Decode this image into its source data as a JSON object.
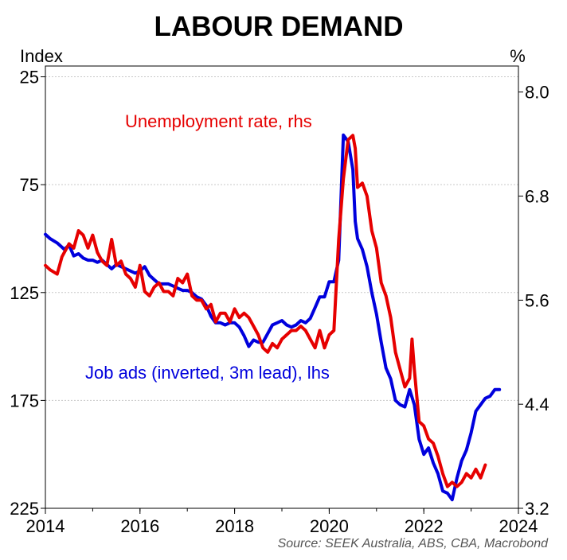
{
  "chart_data": {
    "type": "line",
    "title": "LABOUR DEMAND",
    "left_axis_label": "Index",
    "right_axis_label": "%",
    "x_ticks": [
      "2014",
      "2016",
      "2018",
      "2020",
      "2022",
      "2024"
    ],
    "xlim": [
      2014,
      2024
    ],
    "left_ticks": [
      "25",
      "75",
      "125",
      "175",
      "225"
    ],
    "left_ylim_inverted": [
      20,
      225
    ],
    "right_ticks": [
      "8.0",
      "6.8",
      "5.6",
      "4.4",
      "3.2"
    ],
    "right_ylim": [
      3.2,
      8.3
    ],
    "grid": true,
    "annotations": {
      "unemployment": "Unemployment rate, rhs",
      "job_ads": "Job ads (inverted, 3m lead), lhs"
    },
    "source": "Source: SEEK Australia, ABS, CBA, Macrobond",
    "series": [
      {
        "name": "Unemployment rate, rhs",
        "axis": "right",
        "color": "#e60000",
        "x": [
          2014.0,
          2014.1,
          2014.25,
          2014.35,
          2014.5,
          2014.6,
          2014.7,
          2014.8,
          2014.9,
          2015.0,
          2015.1,
          2015.2,
          2015.3,
          2015.4,
          2015.5,
          2015.6,
          2015.7,
          2015.8,
          2015.9,
          2016.0,
          2016.1,
          2016.2,
          2016.3,
          2016.4,
          2016.5,
          2016.6,
          2016.7,
          2016.8,
          2016.9,
          2017.0,
          2017.1,
          2017.2,
          2017.3,
          2017.4,
          2017.5,
          2017.6,
          2017.7,
          2017.8,
          2017.9,
          2018.0,
          2018.1,
          2018.2,
          2018.3,
          2018.4,
          2018.5,
          2018.6,
          2018.7,
          2018.8,
          2018.9,
          2019.0,
          2019.1,
          2019.2,
          2019.3,
          2019.4,
          2019.5,
          2019.6,
          2019.7,
          2019.8,
          2019.9,
          2020.0,
          2020.1,
          2020.2,
          2020.3,
          2020.4,
          2020.5,
          2020.55,
          2020.6,
          2020.7,
          2020.8,
          2020.9,
          2021.0,
          2021.1,
          2021.2,
          2021.3,
          2021.4,
          2021.5,
          2021.6,
          2021.7,
          2021.75,
          2021.8,
          2021.9,
          2022.0,
          2022.1,
          2022.2,
          2022.3,
          2022.4,
          2022.5,
          2022.6,
          2022.7,
          2022.8,
          2022.9,
          2023.0,
          2023.1,
          2023.2,
          2023.3
        ],
        "values": [
          6.0,
          5.95,
          5.9,
          6.1,
          6.25,
          6.2,
          6.4,
          6.35,
          6.2,
          6.35,
          6.15,
          6.05,
          6.0,
          6.3,
          6.0,
          6.05,
          5.9,
          5.85,
          5.75,
          6.0,
          5.7,
          5.65,
          5.75,
          5.8,
          5.7,
          5.7,
          5.65,
          5.85,
          5.8,
          5.9,
          5.65,
          5.6,
          5.6,
          5.5,
          5.55,
          5.35,
          5.45,
          5.45,
          5.35,
          5.5,
          5.4,
          5.45,
          5.4,
          5.3,
          5.2,
          5.05,
          5.0,
          5.1,
          5.05,
          5.15,
          5.2,
          5.25,
          5.25,
          5.3,
          5.25,
          5.15,
          5.05,
          5.25,
          5.05,
          5.2,
          5.25,
          6.3,
          7.0,
          7.45,
          7.5,
          7.35,
          6.9,
          6.95,
          6.8,
          6.4,
          6.2,
          5.8,
          5.65,
          5.4,
          5.0,
          4.8,
          4.6,
          4.7,
          5.15,
          4.8,
          4.2,
          4.15,
          4.0,
          3.95,
          3.8,
          3.6,
          3.45,
          3.5,
          3.45,
          3.5,
          3.6,
          3.55,
          3.65,
          3.55,
          3.7
        ]
      },
      {
        "name": "Job ads (inverted, 3m lead), lhs",
        "axis": "left",
        "color": "#0000dd",
        "x": [
          2014.0,
          2014.1,
          2014.25,
          2014.4,
          2014.5,
          2014.6,
          2014.7,
          2014.8,
          2014.9,
          2015.0,
          2015.1,
          2015.2,
          2015.3,
          2015.4,
          2015.5,
          2015.6,
          2015.7,
          2015.8,
          2015.9,
          2016.0,
          2016.1,
          2016.2,
          2016.3,
          2016.4,
          2016.5,
          2016.6,
          2016.7,
          2016.8,
          2016.9,
          2017.0,
          2017.1,
          2017.2,
          2017.3,
          2017.4,
          2017.5,
          2017.6,
          2017.7,
          2017.8,
          2017.9,
          2018.0,
          2018.1,
          2018.2,
          2018.3,
          2018.4,
          2018.5,
          2018.6,
          2018.7,
          2018.8,
          2018.9,
          2019.0,
          2019.1,
          2019.2,
          2019.3,
          2019.4,
          2019.5,
          2019.6,
          2019.7,
          2019.8,
          2019.9,
          2020.0,
          2020.1,
          2020.2,
          2020.3,
          2020.4,
          2020.5,
          2020.55,
          2020.6,
          2020.7,
          2020.8,
          2020.9,
          2021.0,
          2021.1,
          2021.2,
          2021.3,
          2021.4,
          2021.5,
          2021.6,
          2021.7,
          2021.8,
          2021.9,
          2022.0,
          2022.1,
          2022.2,
          2022.3,
          2022.4,
          2022.5,
          2022.6,
          2022.7,
          2022.8,
          2022.9,
          2023.0,
          2023.1,
          2023.2,
          2023.3,
          2023.4,
          2023.5,
          2023.6
        ],
        "values": [
          98,
          100,
          102,
          105,
          103,
          108,
          107,
          109,
          110,
          110,
          111,
          110,
          112,
          114,
          112,
          113,
          114,
          115,
          116,
          115,
          113,
          117,
          119,
          121,
          121,
          121,
          122,
          123,
          124,
          124,
          125,
          127,
          128,
          131,
          136,
          139,
          139,
          140,
          139,
          139,
          141,
          145,
          150,
          147,
          148,
          148,
          144,
          140,
          139,
          138,
          140,
          141,
          140,
          138,
          139,
          137,
          132,
          127,
          127,
          120,
          120,
          110,
          52,
          55,
          68,
          92,
          100,
          105,
          113,
          125,
          135,
          148,
          160,
          165,
          175,
          177,
          178,
          170,
          177,
          193,
          200,
          197,
          204,
          209,
          217,
          218,
          221,
          211,
          203,
          198,
          190,
          180,
          177,
          174,
          173,
          170,
          170
        ]
      }
    ]
  }
}
